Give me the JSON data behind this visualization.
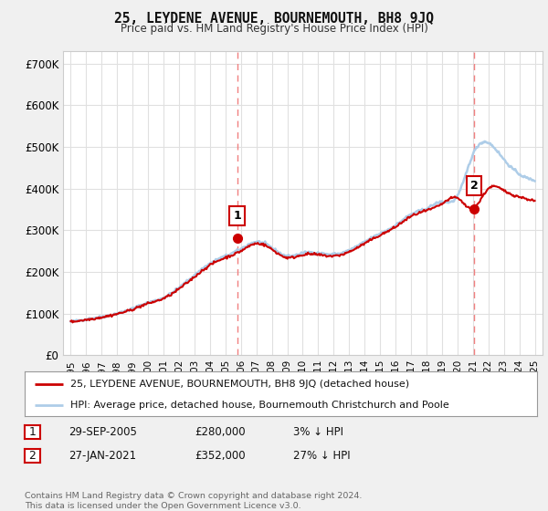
{
  "title": "25, LEYDENE AVENUE, BOURNEMOUTH, BH8 9JQ",
  "subtitle": "Price paid vs. HM Land Registry's House Price Index (HPI)",
  "ylabel_ticks": [
    "£0",
    "£100K",
    "£200K",
    "£300K",
    "£400K",
    "£500K",
    "£600K",
    "£700K"
  ],
  "ytick_values": [
    0,
    100000,
    200000,
    300000,
    400000,
    500000,
    600000,
    700000
  ],
  "ylim": [
    0,
    730000
  ],
  "xlim_start": 1994.5,
  "xlim_end": 2025.5,
  "sale1_year": 2005.75,
  "sale1_price": 280000,
  "sale1_label": "1",
  "sale1_date": "29-SEP-2005",
  "sale1_price_str": "£280,000",
  "sale1_pct": "3% ↓ HPI",
  "sale2_year": 2021.08,
  "sale2_price": 352000,
  "sale2_label": "2",
  "sale2_date": "27-JAN-2021",
  "sale2_price_str": "£352,000",
  "sale2_pct": "27% ↓ HPI",
  "hpi_color": "#aecde8",
  "price_color": "#cc0000",
  "dashed_color": "#f08080",
  "background_color": "#f0f0f0",
  "plot_bg": "#ffffff",
  "grid_color": "#e0e0e0",
  "legend_label_price": "25, LEYDENE AVENUE, BOURNEMOUTH, BH8 9JQ (detached house)",
  "legend_label_hpi": "HPI: Average price, detached house, Bournemouth Christchurch and Poole",
  "footnote": "Contains HM Land Registry data © Crown copyright and database right 2024.\nThis data is licensed under the Open Government Licence v3.0.",
  "xtick_years": [
    1995,
    1996,
    1997,
    1998,
    1999,
    2000,
    2001,
    2002,
    2003,
    2004,
    2005,
    2006,
    2007,
    2008,
    2009,
    2010,
    2011,
    2012,
    2013,
    2014,
    2015,
    2016,
    2017,
    2018,
    2019,
    2020,
    2021,
    2022,
    2023,
    2024,
    2025
  ],
  "years_hpi": [
    1995,
    1996,
    1997,
    1998,
    1999,
    2000,
    2001,
    2002,
    2003,
    2004,
    2005,
    2006,
    2007,
    2008,
    2009,
    2010,
    2011,
    2012,
    2013,
    2014,
    2015,
    2016,
    2017,
    2018,
    2019,
    2020,
    2021,
    2022,
    2023,
    2024,
    2025
  ],
  "hpi_values": [
    80000,
    86000,
    92000,
    100000,
    112000,
    126000,
    138000,
    162000,
    192000,
    220000,
    238000,
    255000,
    272000,
    258000,
    238000,
    245000,
    245000,
    242000,
    252000,
    272000,
    292000,
    312000,
    338000,
    352000,
    368000,
    382000,
    482000,
    510000,
    470000,
    435000,
    420000
  ],
  "price_values": [
    80000,
    85000,
    91000,
    99000,
    110000,
    124000,
    136000,
    159000,
    188000,
    216000,
    234000,
    250000,
    268000,
    254000,
    234000,
    241000,
    241000,
    238000,
    248000,
    268000,
    288000,
    308000,
    333000,
    347000,
    363000,
    377000,
    352000,
    400000,
    395000,
    380000,
    370000
  ]
}
